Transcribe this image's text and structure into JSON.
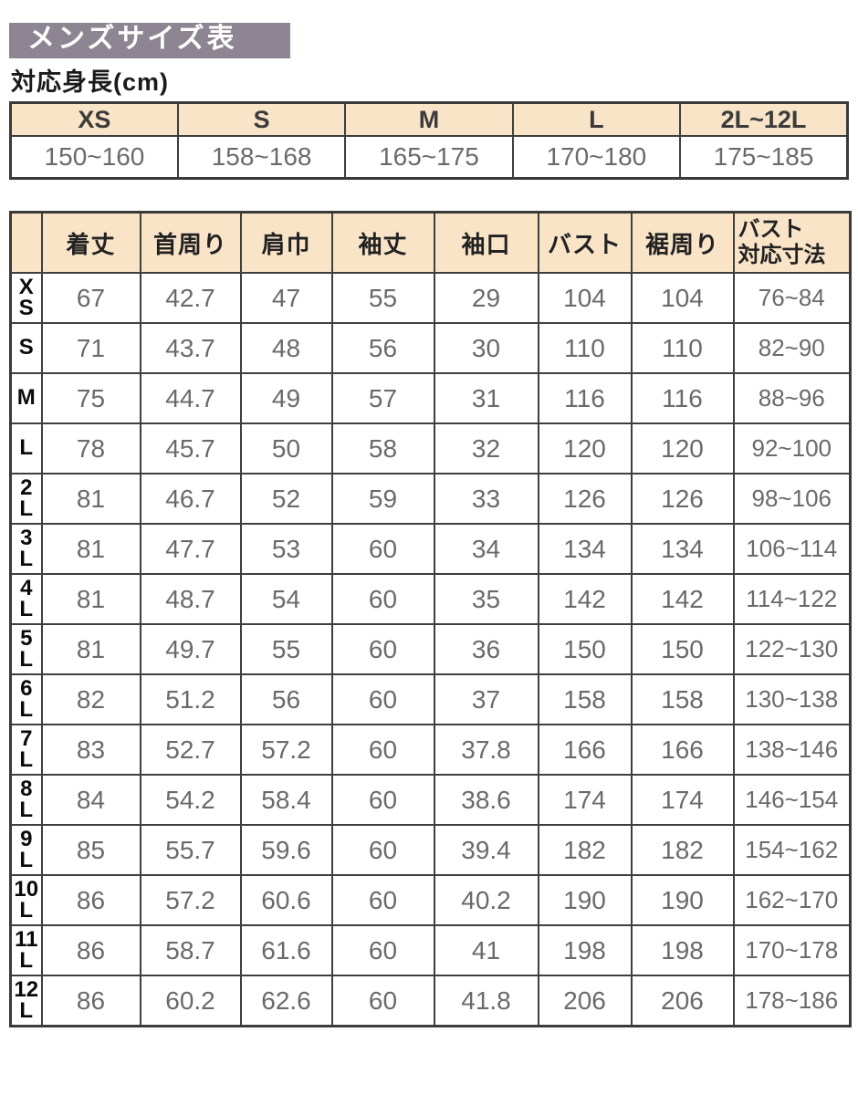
{
  "title": "メンズサイズ表",
  "colors": {
    "title_bar_bg": "#8d8692",
    "title_text": "#ffffff",
    "header_cell_bg": "#f9e4c8",
    "border": "#3f3f3f",
    "number_text": "#6a6a6a",
    "label_text": "#0a0a0a"
  },
  "height_section": {
    "label": "対応身長(cm)",
    "columns": [
      "XS",
      "S",
      "M",
      "L",
      "2L~12L"
    ],
    "values": [
      "150~160",
      "158~168",
      "165~175",
      "170~180",
      "175~185"
    ]
  },
  "size_table": {
    "columns": [
      "着丈",
      "首周り",
      "肩巾",
      "袖丈",
      "袖口",
      "バスト",
      "裾周り"
    ],
    "last_column_lines": [
      "バスト",
      "対応寸法"
    ],
    "rows": [
      {
        "size": "XS",
        "label_lines": [
          "X",
          "S"
        ],
        "values": [
          "67",
          "42.7",
          "47",
          "55",
          "29",
          "104",
          "104",
          "76~84"
        ]
      },
      {
        "size": "S",
        "label_lines": [
          "S"
        ],
        "values": [
          "71",
          "43.7",
          "48",
          "56",
          "30",
          "110",
          "110",
          "82~90"
        ]
      },
      {
        "size": "M",
        "label_lines": [
          "M"
        ],
        "values": [
          "75",
          "44.7",
          "49",
          "57",
          "31",
          "116",
          "116",
          "88~96"
        ]
      },
      {
        "size": "L",
        "label_lines": [
          "L"
        ],
        "values": [
          "78",
          "45.7",
          "50",
          "58",
          "32",
          "120",
          "120",
          "92~100"
        ]
      },
      {
        "size": "2L",
        "label_lines": [
          "2",
          "L"
        ],
        "values": [
          "81",
          "46.7",
          "52",
          "59",
          "33",
          "126",
          "126",
          "98~106"
        ]
      },
      {
        "size": "3L",
        "label_lines": [
          "3",
          "L"
        ],
        "values": [
          "81",
          "47.7",
          "53",
          "60",
          "34",
          "134",
          "134",
          "106~114"
        ]
      },
      {
        "size": "4L",
        "label_lines": [
          "4",
          "L"
        ],
        "values": [
          "81",
          "48.7",
          "54",
          "60",
          "35",
          "142",
          "142",
          "114~122"
        ]
      },
      {
        "size": "5L",
        "label_lines": [
          "5",
          "L"
        ],
        "values": [
          "81",
          "49.7",
          "55",
          "60",
          "36",
          "150",
          "150",
          "122~130"
        ]
      },
      {
        "size": "6L",
        "label_lines": [
          "6",
          "L"
        ],
        "values": [
          "82",
          "51.2",
          "56",
          "60",
          "37",
          "158",
          "158",
          "130~138"
        ]
      },
      {
        "size": "7L",
        "label_lines": [
          "7",
          "L"
        ],
        "values": [
          "83",
          "52.7",
          "57.2",
          "60",
          "37.8",
          "166",
          "166",
          "138~146"
        ]
      },
      {
        "size": "8L",
        "label_lines": [
          "8",
          "L"
        ],
        "values": [
          "84",
          "54.2",
          "58.4",
          "60",
          "38.6",
          "174",
          "174",
          "146~154"
        ]
      },
      {
        "size": "9L",
        "label_lines": [
          "9",
          "L"
        ],
        "values": [
          "85",
          "55.7",
          "59.6",
          "60",
          "39.4",
          "182",
          "182",
          "154~162"
        ]
      },
      {
        "size": "10L",
        "label_lines": [
          "10",
          "L"
        ],
        "values": [
          "86",
          "57.2",
          "60.6",
          "60",
          "40.2",
          "190",
          "190",
          "162~170"
        ]
      },
      {
        "size": "11L",
        "label_lines": [
          "11",
          "L"
        ],
        "values": [
          "86",
          "58.7",
          "61.6",
          "60",
          "41",
          "198",
          "198",
          "170~178"
        ]
      },
      {
        "size": "12L",
        "label_lines": [
          "12",
          "L"
        ],
        "values": [
          "86",
          "60.2",
          "62.6",
          "60",
          "41.8",
          "206",
          "206",
          "178~186"
        ]
      }
    ]
  }
}
